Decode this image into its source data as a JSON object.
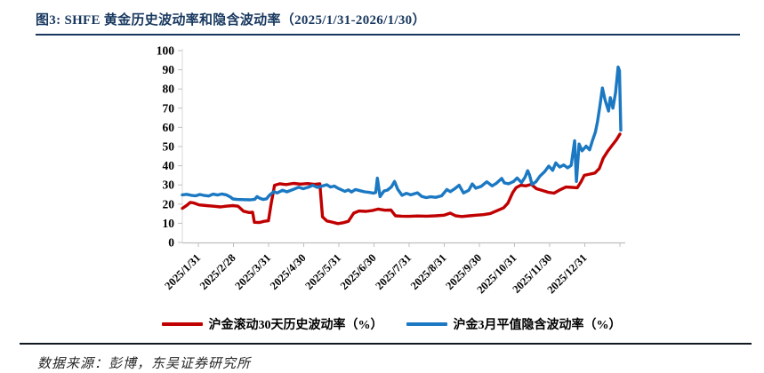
{
  "figure": {
    "title": "图3:  SHFE 黄金历史波动率和隐含波动率（2025/1/31-2026/1/30）",
    "source_note": "数据来源：彭博，东吴证券研究所"
  },
  "colors": {
    "title_text": "#17375e",
    "historical_line": "#c00000",
    "implied_line": "#1b78c2",
    "axis_line": "#bfbfbf",
    "tick_text": "#000000"
  },
  "legend": {
    "items": [
      {
        "id": "historical",
        "label": "沪金滚动30天历史波动率（%）"
      },
      {
        "id": "implied",
        "label": "沪金3月平值隐含波动率（%）"
      }
    ]
  },
  "chart_data": {
    "type": "line",
    "title": "SHFE 黄金历史波动率和隐含波动率（2025/1/31-2026/1/30）",
    "xlabel": "",
    "ylabel": "",
    "ylim": [
      0,
      100
    ],
    "y_ticks": [
      0,
      10,
      20,
      30,
      40,
      50,
      60,
      70,
      80,
      90,
      100
    ],
    "grid": false,
    "legend_position": "bottom",
    "categories": [
      "2025/1/31",
      "2025/2/28",
      "2025/3/31",
      "2025/4/30",
      "2025/5/31",
      "2025/6/30",
      "2025/7/31",
      "2025/8/31",
      "2025/9/30",
      "2025/10/31",
      "2025/11/30",
      "2025/12/31"
    ],
    "x_range_note": "daily data from 2025/1/31 to 2026/1/30, x given as percent of span",
    "series": [
      {
        "name": "沪金滚动30天历史波动率（%）",
        "color": "#c00000",
        "points": [
          [
            0,
            17.8
          ],
          [
            1,
            19.3
          ],
          [
            1.8,
            20.9
          ],
          [
            2.6,
            20.6
          ],
          [
            3.8,
            19.6
          ],
          [
            5.5,
            19.2
          ],
          [
            7.1,
            18.9
          ],
          [
            8.7,
            18.5
          ],
          [
            9.9,
            18.9
          ],
          [
            11.5,
            19.2
          ],
          [
            12.7,
            18.9
          ],
          [
            13.9,
            16.3
          ],
          [
            15.2,
            15.6
          ],
          [
            16,
            15.8
          ],
          [
            16.4,
            10.5
          ],
          [
            17.6,
            10.4
          ],
          [
            18.6,
            11
          ],
          [
            19.6,
            11.3
          ],
          [
            20.2,
            20
          ],
          [
            21,
            29.8
          ],
          [
            22.2,
            30.6
          ],
          [
            23.6,
            30.2
          ],
          [
            25.3,
            30.8
          ],
          [
            26.9,
            30.4
          ],
          [
            28.5,
            30.7
          ],
          [
            30.1,
            30.3
          ],
          [
            31.3,
            30.6
          ],
          [
            31.9,
            13.4
          ],
          [
            32.9,
            11.2
          ],
          [
            34.1,
            10.6
          ],
          [
            35.4,
            9.8
          ],
          [
            36.6,
            10.3
          ],
          [
            37.8,
            11
          ],
          [
            39,
            15.3
          ],
          [
            40.2,
            16.4
          ],
          [
            41.8,
            16.2
          ],
          [
            43.4,
            16.7
          ],
          [
            44.6,
            17.4
          ],
          [
            46.1,
            16.8
          ],
          [
            47.5,
            16.9
          ],
          [
            48.5,
            13.9
          ],
          [
            49.9,
            13.7
          ],
          [
            51.5,
            13.6
          ],
          [
            53.5,
            13.8
          ],
          [
            55.6,
            13.7
          ],
          [
            57.6,
            13.9
          ],
          [
            59.6,
            14.2
          ],
          [
            61,
            15.3
          ],
          [
            62.2,
            13.9
          ],
          [
            63.6,
            13.5
          ],
          [
            65.3,
            13.9
          ],
          [
            66.9,
            14.2
          ],
          [
            68.5,
            14.5
          ],
          [
            70.1,
            15.1
          ],
          [
            71.7,
            16.6
          ],
          [
            73.1,
            18
          ],
          [
            74.1,
            20.5
          ],
          [
            75.2,
            26
          ],
          [
            76,
            28.6
          ],
          [
            77,
            29.8
          ],
          [
            78.2,
            29.5
          ],
          [
            79.4,
            30.3
          ],
          [
            80.6,
            28
          ],
          [
            81.8,
            27.2
          ],
          [
            83.2,
            26.2
          ],
          [
            84.6,
            25.7
          ],
          [
            86.1,
            27.6
          ],
          [
            87.3,
            28.9
          ],
          [
            88.7,
            28.7
          ],
          [
            89.9,
            28.5
          ],
          [
            90.7,
            31.5
          ],
          [
            91.5,
            35
          ],
          [
            92.7,
            35.6
          ],
          [
            93.9,
            36.2
          ],
          [
            94.9,
            38.5
          ],
          [
            95.8,
            44
          ],
          [
            96.8,
            47.5
          ],
          [
            97.8,
            50.5
          ],
          [
            98.8,
            53.5
          ],
          [
            99.6,
            56.5
          ]
        ]
      },
      {
        "name": "沪金3月平值隐含波动率（%）",
        "color": "#1b78c2",
        "points": [
          [
            0,
            24.8
          ],
          [
            1,
            25.1
          ],
          [
            2,
            24.6
          ],
          [
            3,
            24.3
          ],
          [
            4,
            25
          ],
          [
            5,
            24.5
          ],
          [
            6,
            24.2
          ],
          [
            7,
            25.2
          ],
          [
            8,
            24.7
          ],
          [
            9,
            25.3
          ],
          [
            10,
            24.8
          ],
          [
            11,
            23.6
          ],
          [
            11.5,
            22.7
          ],
          [
            12.5,
            22.4
          ],
          [
            14,
            22.3
          ],
          [
            15.5,
            22.2
          ],
          [
            16.5,
            22.5
          ],
          [
            17,
            23.9
          ],
          [
            17.6,
            23.1
          ],
          [
            18.4,
            22.4
          ],
          [
            19.2,
            22.8
          ],
          [
            19.8,
            24.6
          ],
          [
            20.8,
            26.5
          ],
          [
            21.6,
            25.8
          ],
          [
            22.8,
            27.2
          ],
          [
            23.8,
            26.4
          ],
          [
            25.3,
            27.7
          ],
          [
            26.5,
            28.8
          ],
          [
            27.5,
            28
          ],
          [
            28.7,
            28.8
          ],
          [
            29.7,
            29.8
          ],
          [
            30.7,
            28.7
          ],
          [
            31.7,
            29.3
          ],
          [
            32.9,
            30.1
          ],
          [
            33.7,
            28.9
          ],
          [
            34.6,
            29.4
          ],
          [
            35.4,
            28.3
          ],
          [
            37,
            26.6
          ],
          [
            37.8,
            27.4
          ],
          [
            38.5,
            26.3
          ],
          [
            39.4,
            27.6
          ],
          [
            40.4,
            27
          ],
          [
            41.5,
            26.4
          ],
          [
            42.5,
            26.1
          ],
          [
            43.5,
            25.7
          ],
          [
            44,
            26
          ],
          [
            44.4,
            33.5
          ],
          [
            45,
            23.9
          ],
          [
            45.9,
            26.8
          ],
          [
            46.7,
            27.3
          ],
          [
            47.6,
            29
          ],
          [
            48.3,
            31.8
          ],
          [
            49,
            27.8
          ],
          [
            50,
            24.6
          ],
          [
            51,
            25.6
          ],
          [
            52,
            24.8
          ],
          [
            53.5,
            25.9
          ],
          [
            54.5,
            24
          ],
          [
            55.5,
            23.4
          ],
          [
            56.5,
            23.8
          ],
          [
            57.7,
            23.5
          ],
          [
            59,
            24.3
          ],
          [
            60.2,
            27.6
          ],
          [
            61,
            26.5
          ],
          [
            62,
            28
          ],
          [
            63,
            29.8
          ],
          [
            64,
            25.8
          ],
          [
            65.2,
            27.2
          ],
          [
            66,
            30.5
          ],
          [
            66.8,
            28.3
          ],
          [
            68,
            29.2
          ],
          [
            69.3,
            31.6
          ],
          [
            70.5,
            29.5
          ],
          [
            71.5,
            30.9
          ],
          [
            72.7,
            33.4
          ],
          [
            73.3,
            31
          ],
          [
            74.3,
            30.6
          ],
          [
            75.4,
            31.8
          ],
          [
            76.2,
            33.6
          ],
          [
            77.2,
            31.2
          ],
          [
            78,
            34
          ],
          [
            78.6,
            37.4
          ],
          [
            79,
            35.3
          ],
          [
            79.6,
            30.2
          ],
          [
            80.5,
            31.7
          ],
          [
            81.4,
            34.6
          ],
          [
            82.5,
            37
          ],
          [
            83.4,
            39.8
          ],
          [
            84.3,
            37.6
          ],
          [
            85,
            41.5
          ],
          [
            85.9,
            39.3
          ],
          [
            86.8,
            40.4
          ],
          [
            87.7,
            38.9
          ],
          [
            88.5,
            40.2
          ],
          [
            89.3,
            53
          ],
          [
            89.7,
            31.8
          ],
          [
            90.3,
            51.3
          ],
          [
            91,
            47.8
          ],
          [
            91.9,
            50.2
          ],
          [
            92.7,
            48.3
          ],
          [
            93.4,
            53.5
          ],
          [
            94,
            57.5
          ],
          [
            94.5,
            63
          ],
          [
            95,
            70.5
          ],
          [
            95.6,
            80.5
          ],
          [
            96.2,
            74.5
          ],
          [
            96.6,
            71.5
          ],
          [
            97,
            68.5
          ],
          [
            97.4,
            75.5
          ],
          [
            98,
            70
          ],
          [
            98.6,
            78
          ],
          [
            99.2,
            91.5
          ],
          [
            99.5,
            89.5
          ],
          [
            99.8,
            58.5
          ]
        ]
      }
    ]
  }
}
